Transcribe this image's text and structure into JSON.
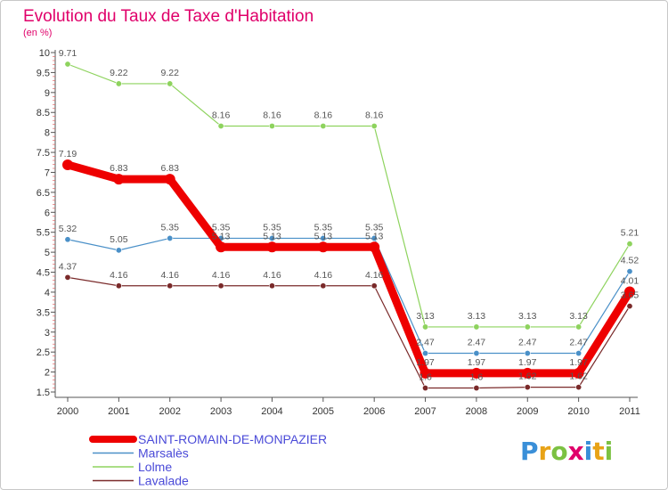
{
  "title": "Evolution du Taux de Taxe d'Habitation",
  "subtitle": "(en %)",
  "logo": {
    "text": "Proxiti",
    "colors": [
      "#3a8fd8",
      "#e8a317",
      "#7cc142",
      "#e0006a",
      "#3a8fd8",
      "#e8a317",
      "#7cc142"
    ]
  },
  "chart_data": {
    "type": "line",
    "x": [
      "2000",
      "2001",
      "2002",
      "2003",
      "2004",
      "2005",
      "2006",
      "2007",
      "2008",
      "2009",
      "2010",
      "2011"
    ],
    "ylim": [
      1.5,
      10
    ],
    "yticks": [
      "1.5",
      "2",
      "2.5",
      "3",
      "3.5",
      "4",
      "4.5",
      "5",
      "5.5",
      "6",
      "6.5",
      "7",
      "7.5",
      "8",
      "8.5",
      "9",
      "9.5",
      "10"
    ],
    "grid": false,
    "legend_position": "bottom-left",
    "series": [
      {
        "name": "SAINT-ROMAIN-DE-MONPAZIER",
        "color": "#ee0000",
        "values": [
          7.19,
          6.83,
          6.83,
          5.13,
          5.13,
          5.13,
          5.13,
          1.97,
          1.97,
          1.97,
          1.97,
          4.01
        ],
        "labels": [
          "7.19",
          "6.83",
          "6.83",
          "5.13",
          "5.13",
          "5.13",
          "5.13",
          "1.97",
          "1.97",
          "1.97",
          "1.97",
          "4.01"
        ]
      },
      {
        "name": "Marsalès",
        "color": "#4a90c8",
        "values": [
          5.32,
          5.05,
          5.35,
          5.35,
          5.35,
          5.35,
          5.35,
          2.47,
          2.47,
          2.47,
          2.47,
          4.52
        ],
        "labels": [
          "5.32",
          "5.05",
          "5.35",
          "5.35",
          "5.35",
          "5.35",
          "5.35",
          "2.47",
          "2.47",
          "2.47",
          "2.47",
          "4.52"
        ]
      },
      {
        "name": "Lolme",
        "color": "#8ed35e",
        "values": [
          9.71,
          9.22,
          9.22,
          8.16,
          8.16,
          8.16,
          8.16,
          3.13,
          3.13,
          3.13,
          3.13,
          5.21
        ],
        "labels": [
          "9.71",
          "9.22",
          "9.22",
          "8.16",
          "8.16",
          "8.16",
          "8.16",
          "3.13",
          "3.13",
          "3.13",
          "3.13",
          "5.21"
        ]
      },
      {
        "name": "Lavalade",
        "color": "#7a2a2a",
        "values": [
          4.37,
          4.16,
          4.16,
          4.16,
          4.16,
          4.16,
          4.16,
          1.6,
          1.6,
          1.62,
          1.62,
          3.65
        ],
        "labels": [
          "4.37",
          "4.16",
          "4.16",
          "4.16",
          "4.16",
          "4.16",
          "4.16",
          "1.6",
          "1.6",
          "1.62",
          "1.62",
          "3.65"
        ]
      }
    ]
  }
}
